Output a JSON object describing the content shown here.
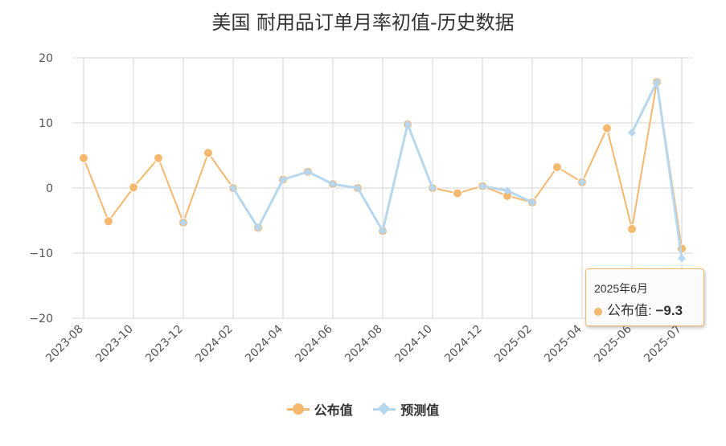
{
  "title": "美国 耐用品订单月率初值-历史数据",
  "colors": {
    "published": "#f5b86f",
    "forecast": "#b7d7ee"
  },
  "chart_data": {
    "type": "line",
    "title": "美国 耐用品订单月率初值-历史数据",
    "ylim": [
      -20,
      20
    ],
    "yticks": [
      "20",
      "10",
      "0",
      "−10",
      "−20"
    ],
    "ytick_values": [
      20,
      10,
      0,
      -10,
      -20
    ],
    "xtick_labels": [
      "2023-08",
      "2023-10",
      "2023-12",
      "2024-02",
      "2024-04",
      "2024-06",
      "2024-08",
      "2024-10",
      "2024-12",
      "2025-02",
      "2025-04",
      "2025-06",
      "2025-07"
    ],
    "xtick_index": [
      0,
      2,
      4,
      6,
      8,
      10,
      12,
      14,
      16,
      18,
      20,
      22,
      24
    ],
    "categories": [
      "2023-08",
      "2023-09",
      "2023-10",
      "2023-11",
      "2023-12",
      "2024-01",
      "2024-02",
      "2024-03",
      "2024-04",
      "2024-05",
      "2024-06",
      "2024-07",
      "2024-08",
      "2024-09",
      "2024-10",
      "2024-11",
      "2024-12",
      "2025-01",
      "2025-02",
      "2025-03",
      "2025-04",
      "2025-05",
      "2025-06",
      "2025-06b",
      "2025-07"
    ],
    "grid": true,
    "legend_position": "bottom",
    "series": [
      {
        "name": "公布值",
        "values": [
          4.6,
          -5.1,
          0.1,
          4.6,
          -5.3,
          5.4,
          0.0,
          -6.1,
          1.3,
          2.5,
          0.6,
          0.0,
          -6.6,
          9.8,
          0.0,
          -0.8,
          0.3,
          -1.2,
          -2.2,
          3.2,
          0.9,
          9.2,
          -6.3,
          16.3,
          -9.3
        ]
      },
      {
        "name": "预测值",
        "values": [
          null,
          null,
          null,
          null,
          -5.3,
          null,
          0.0,
          -6.1,
          1.3,
          2.5,
          0.6,
          0.0,
          -6.6,
          9.8,
          0.0,
          null,
          0.3,
          -0.4,
          -2.2,
          null,
          0.9,
          null,
          8.5,
          16.3,
          -10.8
        ]
      }
    ]
  },
  "legend": {
    "published_label": "公布值",
    "forecast_label": "预测值"
  },
  "tooltip": {
    "date": "2025年6月",
    "label": "公布值:",
    "value": "−9.3"
  }
}
